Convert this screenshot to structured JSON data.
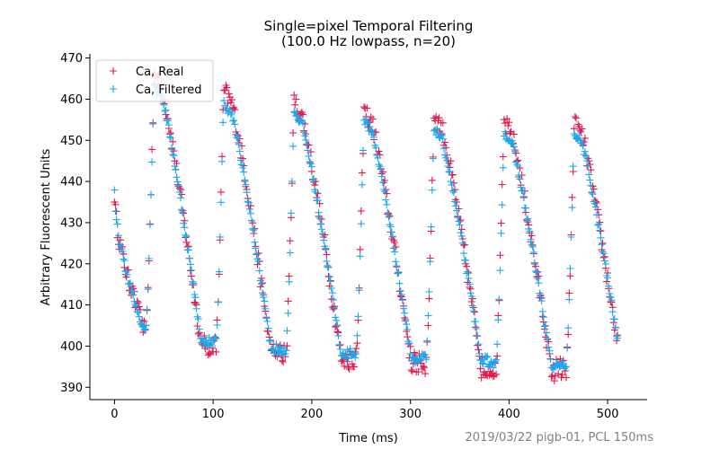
{
  "chart_data": {
    "type": "scatter",
    "title_line1": "Single=pixel Temporal Filtering",
    "title_line2": "(100.0 Hz lowpass, n=20)",
    "xlabel": "Time (ms)",
    "ylabel": "Arbitrary Fluorescent Units",
    "footnote": "2019/03/22 pigb-01, PCL 150ms",
    "xlim": [
      -25,
      540
    ],
    "ylim": [
      387,
      471
    ],
    "xticks": [
      "0",
      "100",
      "200",
      "300",
      "400",
      "500"
    ],
    "yticks": [
      "390",
      "400",
      "410",
      "420",
      "430",
      "440",
      "450",
      "460",
      "470"
    ],
    "legend_position": "upper-left",
    "marker": "+",
    "grid": false,
    "beat_period_ms": 71,
    "sample_interval_ms": 1,
    "x_range": [
      0,
      510
    ],
    "series": [
      {
        "name": "Ca, Real",
        "color": "#e6194b",
        "noise_amplitude": 2.5,
        "peaks": [
          466,
          462,
          459,
          457,
          456,
          454,
          454,
          454
        ],
        "troughs": [
          404,
          400,
          398,
          397,
          396,
          395,
          394,
          394
        ]
      },
      {
        "name": "Ca, Filtered",
        "color": "#1ca7ec",
        "noise_amplitude": 1.0,
        "peaks": [
          464,
          459,
          457,
          455,
          453,
          452,
          452,
          452
        ],
        "troughs": [
          405,
          401,
          399,
          398,
          397,
          396,
          395,
          395
        ]
      }
    ]
  }
}
